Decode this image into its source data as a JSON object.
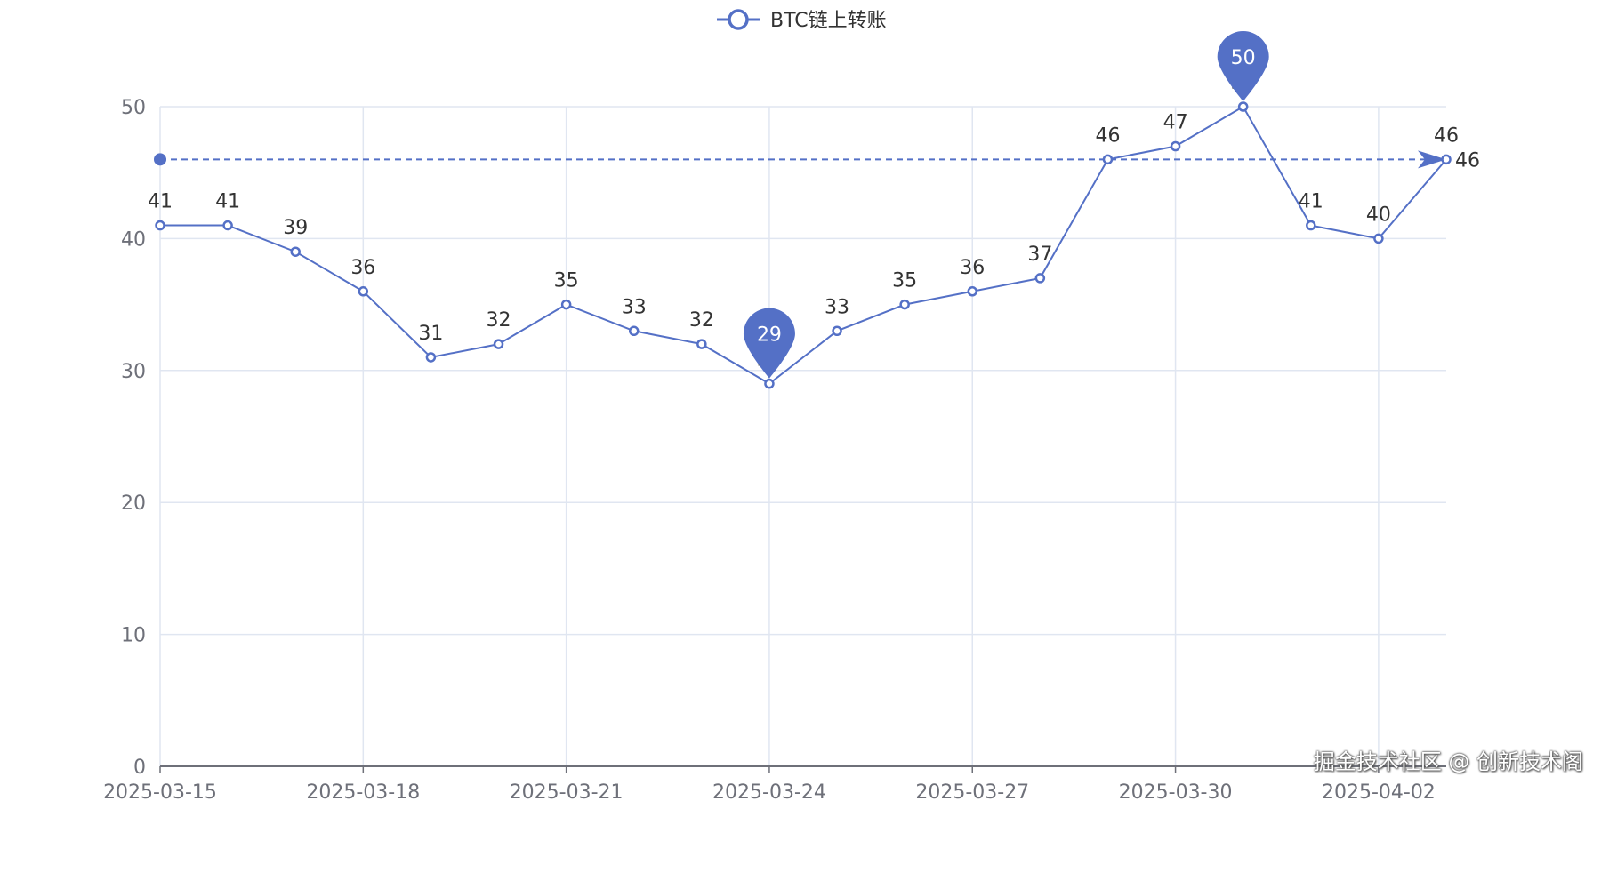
{
  "chart_data": {
    "type": "line",
    "legend": {
      "placement": "top-center"
    },
    "categories": [
      "2025-03-15",
      "2025-03-16",
      "2025-03-17",
      "2025-03-18",
      "2025-03-19",
      "2025-03-20",
      "2025-03-21",
      "2025-03-22",
      "2025-03-23",
      "2025-03-24",
      "2025-03-25",
      "2025-03-26",
      "2025-03-27",
      "2025-03-28",
      "2025-03-29",
      "2025-03-30",
      "2025-03-31",
      "2025-04-01",
      "2025-04-02",
      "2025-04-03"
    ],
    "x_tick_labels": [
      "2025-03-15",
      "2025-03-18",
      "2025-03-21",
      "2025-03-24",
      "2025-03-27",
      "2025-03-30",
      "2025-04-02"
    ],
    "series": [
      {
        "name": "BTC链上转账",
        "values": [
          41,
          41,
          39,
          36,
          31,
          32,
          35,
          33,
          32,
          29,
          33,
          35,
          36,
          37,
          46,
          47,
          50,
          41,
          40,
          46
        ],
        "color": "#5470c6"
      }
    ],
    "ylim": [
      0,
      50
    ],
    "y_ticks": [
      0,
      10,
      20,
      30,
      40,
      50
    ],
    "grid": true,
    "mark_points": [
      {
        "type": "max",
        "value": 50,
        "category": "2025-03-31"
      },
      {
        "type": "min",
        "value": 29,
        "category": "2025-03-24"
      }
    ],
    "mark_line": {
      "from_value": 46,
      "to_value": 46,
      "label": "46"
    }
  },
  "watermark": "掘金技术社区 @ 创新技术阁"
}
